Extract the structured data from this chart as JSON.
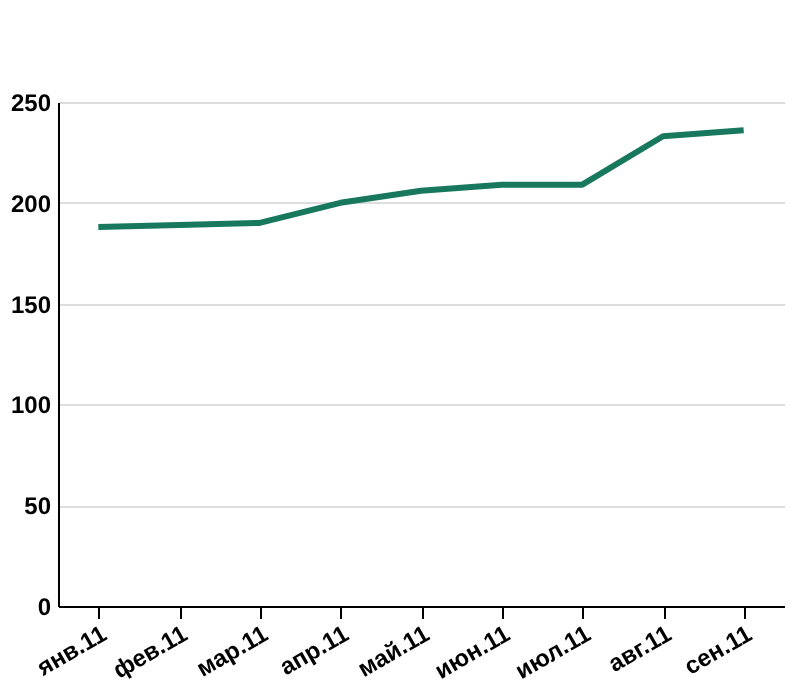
{
  "chart_data": {
    "type": "line",
    "categories": [
      "янв.11",
      "фев.11",
      "мар.11",
      "апр.11",
      "май.11",
      "июн.11",
      "июл.11",
      "авг.11",
      "сен.11"
    ],
    "series": [
      {
        "color": "#18785e",
        "values": [
          188,
          189,
          190,
          200,
          206,
          209,
          209,
          233,
          236
        ]
      }
    ],
    "ylim": [
      0,
      250
    ],
    "yticks": [
      0,
      50,
      100,
      150,
      200,
      250
    ],
    "grid": "y",
    "marker": "none",
    "line_style": "solid"
  }
}
